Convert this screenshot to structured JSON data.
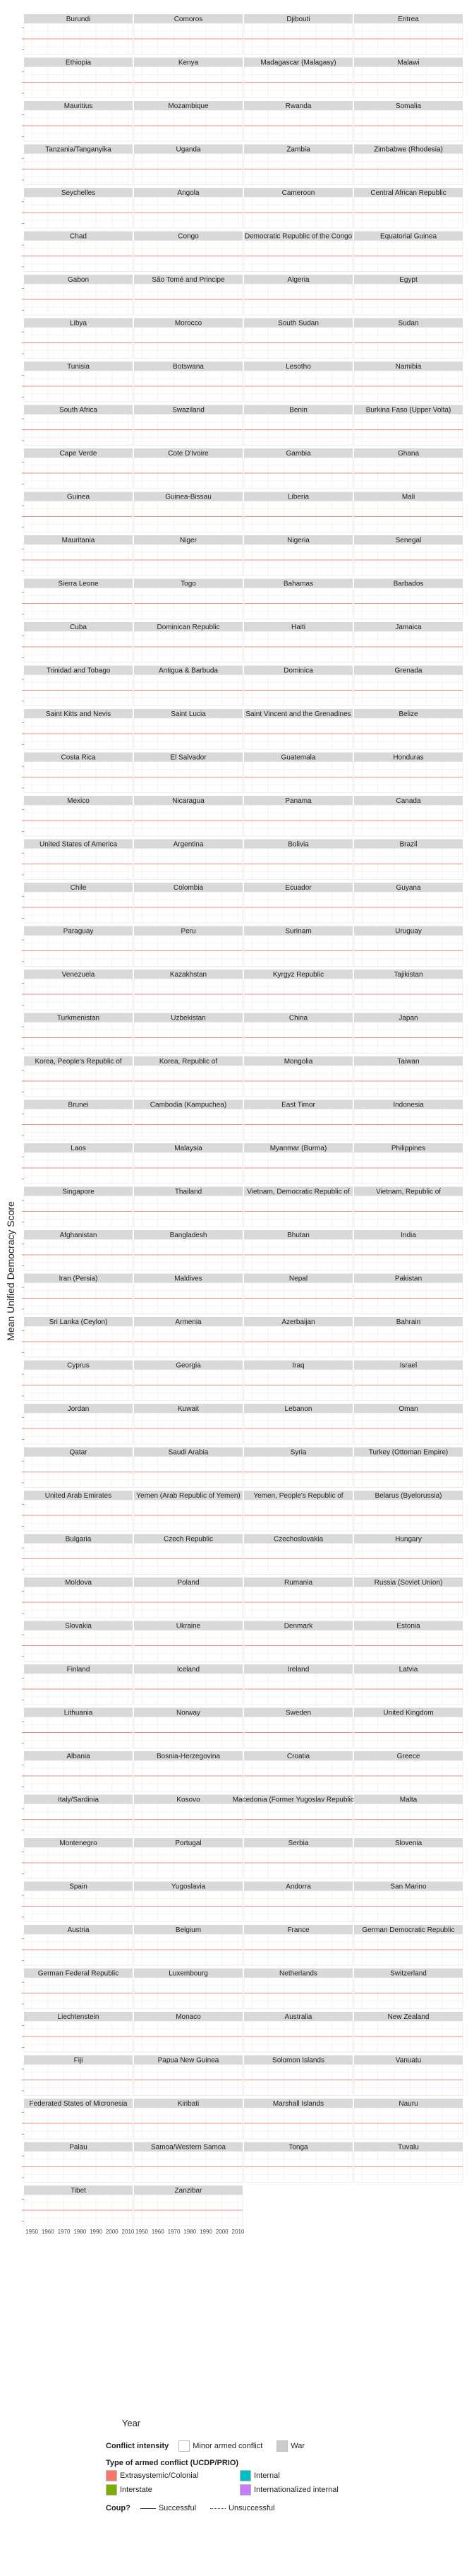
{
  "chart_data": {
    "type": "line",
    "ylabel": "Mean Unified Democracy Score",
    "xlabel": "Year",
    "xlim": [
      1946,
      2012
    ],
    "xticks": [
      "1950",
      "1960",
      "1970",
      "1980",
      "1990",
      "2000",
      "2010"
    ],
    "ylim": [
      -2,
      2
    ],
    "grid": true,
    "layout": "4-column facet grid",
    "facets": [
      "Burundi",
      "Comoros",
      "Djibouti",
      "Eritrea",
      "Ethiopia",
      "Kenya",
      "Madagascar (Malagasy)",
      "Malawi",
      "Mauritius",
      "Mozambique",
      "Rwanda",
      "Somalia",
      "Tanzania/Tanganyika",
      "Uganda",
      "Zambia",
      "Zimbabwe (Rhodesia)",
      "Seychelles",
      "Angola",
      "Cameroon",
      "Central African Republic",
      "Chad",
      "Congo",
      "Democratic Republic of the Congo",
      "Equatorial Guinea",
      "Gabon",
      "São Tomé and Principe",
      "Algeria",
      "Egypt",
      "Libya",
      "Morocco",
      "South Sudan",
      "Sudan",
      "Tunisia",
      "Botswana",
      "Lesotho",
      "Namibia",
      "South Africa",
      "Swaziland",
      "Benin",
      "Burkina Faso (Upper Volta)",
      "Cape Verde",
      "Cote D'Ivoire",
      "Gambia",
      "Ghana",
      "Guinea",
      "Guinea-Bissau",
      "Liberia",
      "Mali",
      "Mauritania",
      "Niger",
      "Nigeria",
      "Senegal",
      "Sierra Leone",
      "Togo",
      "Bahamas",
      "Barbados",
      "Cuba",
      "Dominican Republic",
      "Haiti",
      "Jamaica",
      "Trinidad and Tobago",
      "Antigua & Barbuda",
      "Dominica",
      "Grenada",
      "Saint Kitts and Nevis",
      "Saint Lucia",
      "Saint Vincent and the Grenadines",
      "Belize",
      "Costa Rica",
      "El Salvador",
      "Guatemala",
      "Honduras",
      "Mexico",
      "Nicaragua",
      "Panama",
      "Canada",
      "United States of America",
      "Argentina",
      "Bolivia",
      "Brazil",
      "Chile",
      "Colombia",
      "Ecuador",
      "Guyana",
      "Paraguay",
      "Peru",
      "Surinam",
      "Uruguay",
      "Venezuela",
      "Kazakhstan",
      "Kyrgyz Republic",
      "Tajikistan",
      "Turkmenistan",
      "Uzbekistan",
      "China",
      "Japan",
      "Korea, People's Republic of",
      "Korea, Republic of",
      "Mongolia",
      "Taiwan",
      "Brunei",
      "Cambodia (Kampuchea)",
      "East Timor",
      "Indonesia",
      "Laos",
      "Malaysia",
      "Myanmar (Burma)",
      "Philippines",
      "Singapore",
      "Thailand",
      "Vietnam, Democratic Republic of",
      "Vietnam, Republic of",
      "Afghanistan",
      "Bangladesh",
      "Bhutan",
      "India",
      "Iran (Persia)",
      "Maldives",
      "Nepal",
      "Pakistan",
      "Sri Lanka (Ceylon)",
      "Armenia",
      "Azerbaijan",
      "Bahrain",
      "Cyprus",
      "Georgia",
      "Iraq",
      "Israel",
      "Jordan",
      "Kuwait",
      "Lebanon",
      "Oman",
      "Qatar",
      "Saudi Arabia",
      "Syria",
      "Turkey (Ottoman Empire)",
      "United Arab Emirates",
      "Yemen (Arab Republic of Yemen)",
      "Yemen, People's Republic of",
      "Belarus (Byelorussia)",
      "Bulgaria",
      "Czech Republic",
      "Czechoslovakia",
      "Hungary",
      "Moldova",
      "Poland",
      "Rumania",
      "Russia (Soviet Union)",
      "Slovakia",
      "Ukraine",
      "Denmark",
      "Estonia",
      "Finland",
      "Iceland",
      "Ireland",
      "Latvia",
      "Lithuania",
      "Norway",
      "Sweden",
      "United Kingdom",
      "Albania",
      "Bosnia-Herzegovina",
      "Croatia",
      "Greece",
      "Italy/Sardinia",
      "Kosovo",
      "Macedonia (Former Yugoslav Republic of)",
      "Malta",
      "Montenegro",
      "Portugal",
      "Serbia",
      "Slovenia",
      "Spain",
      "Yugoslavia",
      "Andorra",
      "San Marino",
      "Austria",
      "Belgium",
      "France",
      "German Democratic Republic",
      "German Federal Republic",
      "Luxembourg",
      "Netherlands",
      "Switzerland",
      "Liechtenstein",
      "Monaco",
      "Australia",
      "New Zealand",
      "Fiji",
      "Papua New Guinea",
      "Solomon Islands",
      "Vanuatu",
      "Federated States of Micronesia",
      "Kiribati",
      "Marshall Islands",
      "Nauru",
      "Palau",
      "Samoa/Western Samoa",
      "Tonga",
      "Tuvalu",
      "Tibet",
      "Zanzibar"
    ],
    "legend": {
      "placement": "bottom",
      "intensity_title": "Conflict intensity",
      "intensity_items": [
        "Minor armed conflict",
        "War"
      ],
      "type_title": "Type of armed conflict (UCDP/PRIO)",
      "type_items": [
        "Extrasystemic/Colonial",
        "Internal",
        "Interstate",
        "Internationalized internal"
      ],
      "coup_title": "Coup?",
      "coup_items": [
        "Successful",
        "Unsuccessful"
      ]
    },
    "colors": {
      "strip": "#d9d9d9",
      "panel_bg": "#ffffff",
      "grid": "#ebebeb",
      "score_line": "#333333",
      "ribbon": "#bfbfbf",
      "zero_line": "#e41a1c",
      "Extrasystemic/Colonial": "#f8766d",
      "Internal": "#00bfc4",
      "Interstate": "#7cae00",
      "Internationalized internal": "#c77cff",
      "War": "#cccccc"
    }
  }
}
